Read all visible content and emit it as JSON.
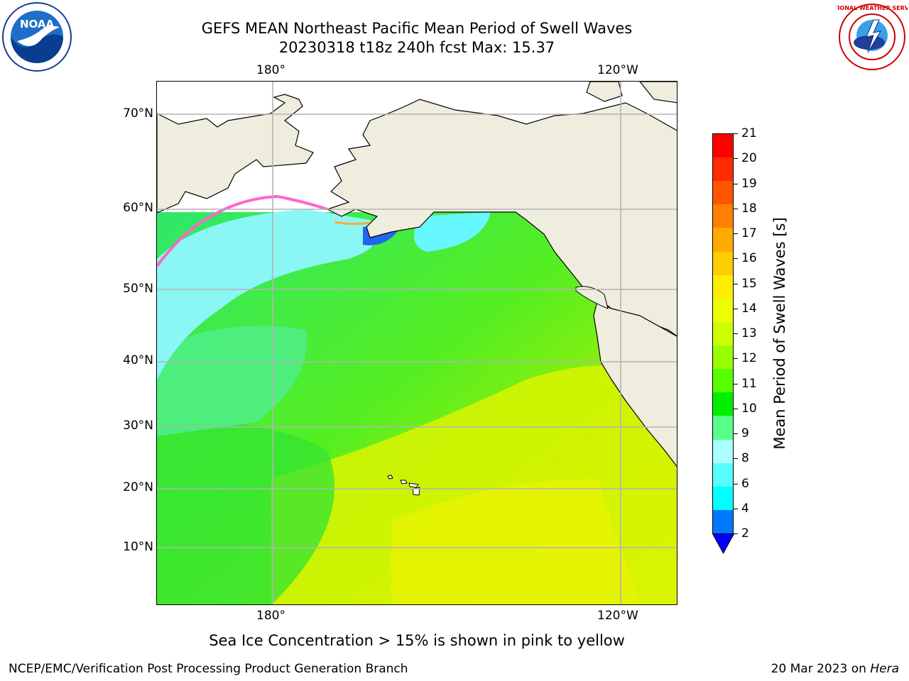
{
  "header": {
    "title_line1": "GEFS MEAN Northeast Pacific Mean Period of Swell Waves",
    "title_line2": "20230318 t18z 240h fcst   Max: 15.37"
  },
  "map": {
    "lon_labels_top": [
      "180°",
      "120°W"
    ],
    "lon_labels_bottom": [
      "180°",
      "120°W"
    ],
    "lat_labels": [
      "70°N",
      "60°N",
      "50°N",
      "40°N",
      "30°N",
      "20°N",
      "10°N"
    ],
    "land_color": "#efedde",
    "grid_color": "#b4b4b4"
  },
  "colorbar": {
    "title": "Mean Period of Swell Waves [s]",
    "tick_labels": [
      "21",
      "20",
      "19",
      "18",
      "17",
      "16",
      "15",
      "14",
      "13",
      "12",
      "11",
      "10",
      "9",
      "8",
      "6",
      "4",
      "2"
    ],
    "colors_top_to_bottom": [
      "#ff0000",
      "#ff2a00",
      "#ff5500",
      "#ff7f00",
      "#ffaa00",
      "#ffcc00",
      "#ffee00",
      "#eeff00",
      "#ccff00",
      "#99ff00",
      "#55ff00",
      "#00ee00",
      "#55ff88",
      "#aaffff",
      "#55ffff",
      "#00ffff",
      "#0077ff"
    ],
    "under_color": "#0000ff"
  },
  "note": "Sea Ice Concentration > 15% is shown in pink to yellow",
  "footer": {
    "left": "NCEP/EMC/Verification Post Processing Product Generation Branch",
    "right_date": "20 Mar 2023 on ",
    "right_host": "Hera"
  },
  "logos": {
    "noaa_text": "NOAA",
    "nws_text": "NATIONAL WEATHER SERVICE"
  }
}
